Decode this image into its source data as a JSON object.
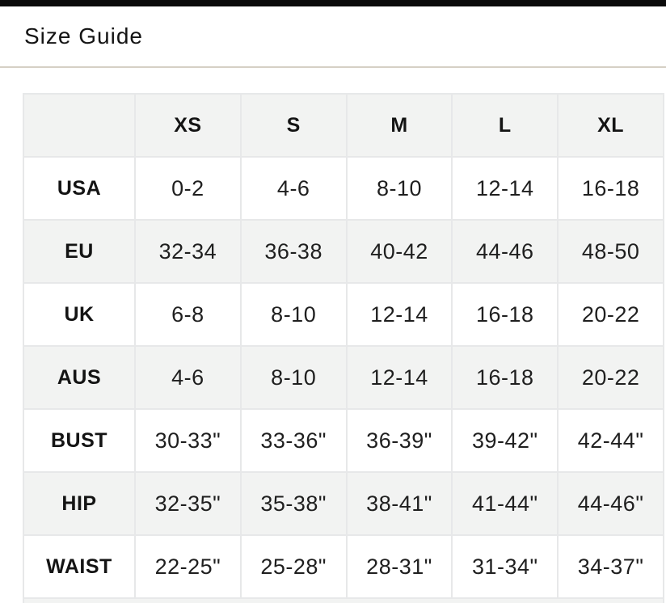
{
  "page": {
    "title": "Size Guide"
  },
  "table": {
    "columns": [
      "",
      "XS",
      "S",
      "M",
      "L",
      "XL"
    ],
    "rows": [
      {
        "label": "USA",
        "values": [
          "0-2",
          "4-6",
          "8-10",
          "12-14",
          "16-18"
        ]
      },
      {
        "label": "EU",
        "values": [
          "32-34",
          "36-38",
          "40-42",
          "44-46",
          "48-50"
        ]
      },
      {
        "label": "UK",
        "values": [
          "6-8",
          "8-10",
          "12-14",
          "16-18",
          "20-22"
        ]
      },
      {
        "label": "AUS",
        "values": [
          "4-6",
          "8-10",
          "12-14",
          "16-18",
          "20-22"
        ]
      },
      {
        "label": "BUST",
        "values": [
          "30-33\"",
          "33-36\"",
          "36-39\"",
          "39-42\"",
          "42-44\""
        ]
      },
      {
        "label": "HIP",
        "values": [
          "32-35\"",
          "35-38\"",
          "38-41\"",
          "41-44\"",
          "44-46\""
        ]
      },
      {
        "label": "WAIST",
        "values": [
          "22-25\"",
          "25-28\"",
          "28-31\"",
          "31-34\"",
          "34-37\""
        ]
      }
    ]
  },
  "colors": {
    "top_bar": "#0b0b0b",
    "divider": "#d6d0c5",
    "row_alt_bg": "#f2f3f2",
    "cell_border": "#e7e8e9",
    "text": "#141414"
  }
}
